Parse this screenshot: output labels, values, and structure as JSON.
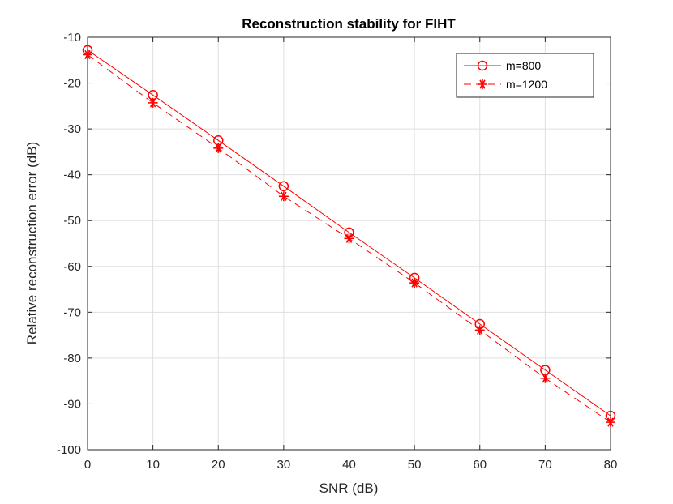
{
  "chart_data": {
    "type": "line",
    "title": "Reconstruction stability for FIHT",
    "xlabel": "SNR (dB)",
    "ylabel": "Relative reconstruction error (dB)",
    "xlim": [
      0,
      80
    ],
    "ylim": [
      -100,
      -10
    ],
    "x_ticks": [
      "0",
      "10",
      "20",
      "30",
      "40",
      "50",
      "60",
      "70",
      "80"
    ],
    "y_ticks": [
      "-10",
      "-20",
      "-30",
      "-40",
      "-50",
      "-60",
      "-70",
      "-80",
      "-90",
      "-100"
    ],
    "grid": true,
    "legend_position": "top-right",
    "x": [
      0,
      10,
      20,
      30,
      40,
      50,
      60,
      70,
      80
    ],
    "series": [
      {
        "name": "m=800",
        "color": "#ff0000",
        "line_style": "solid",
        "marker": "circle",
        "values": [
          -12.8,
          -22.6,
          -32.5,
          -42.5,
          -52.6,
          -62.5,
          -72.6,
          -82.6,
          -92.6
        ]
      },
      {
        "name": "m=1200",
        "color": "#ff0000",
        "line_style": "dashed",
        "marker": "asterisk",
        "values": [
          -13.8,
          -24.3,
          -34.2,
          -44.7,
          -53.9,
          -63.6,
          -73.9,
          -84.4,
          -94.0
        ]
      }
    ]
  }
}
